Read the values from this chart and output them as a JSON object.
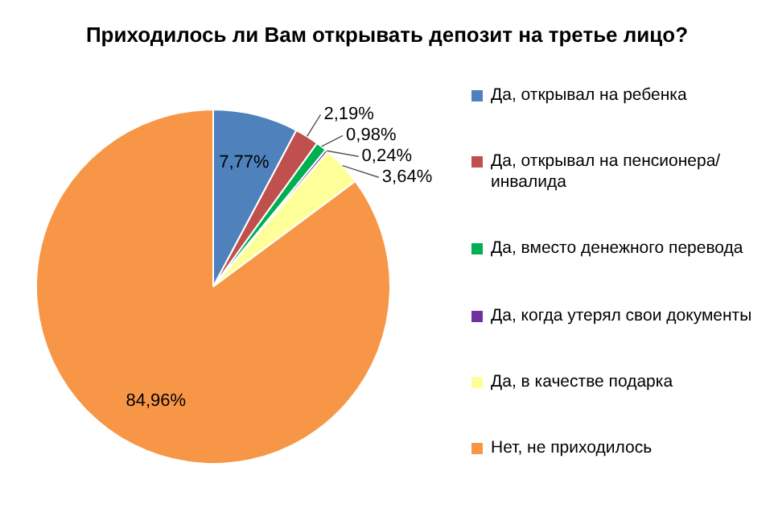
{
  "chart_data": {
    "type": "pie",
    "title": "Приходилось ли Вам открывать депозит на третье лицо?",
    "categories": [
      "Да, открывал на ребенка",
      "Да, открывал на пенсионера/ инвалида",
      "Да, вместо денежного перевода",
      "Да, когда утерял свои документы",
      "Да, в качестве подарка",
      "Нет, не приходилось"
    ],
    "values": [
      7.77,
      2.19,
      0.98,
      0.24,
      3.64,
      84.96
    ],
    "colors": [
      "#4f81bd",
      "#c0504d",
      "#00b050",
      "#7030a0",
      "#ffff99",
      "#f79646"
    ],
    "value_labels": [
      "7,77%",
      "2,19%",
      "0,98%",
      "0,24%",
      "3,64%",
      "84,96%"
    ],
    "legend": "right"
  }
}
